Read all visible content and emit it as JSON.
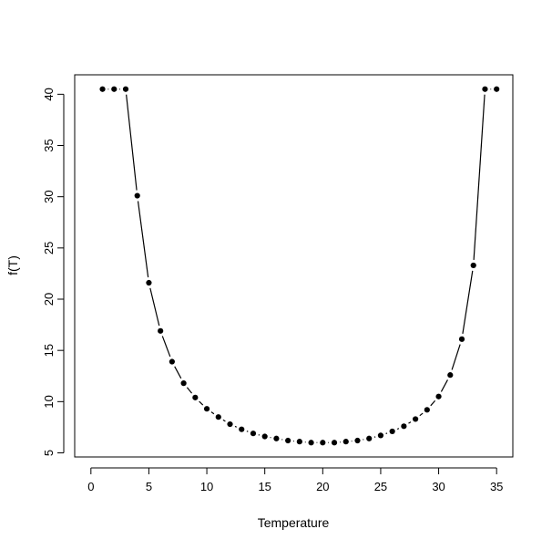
{
  "chart_data": {
    "type": "scatter",
    "title": "",
    "xlabel": "Temperature",
    "ylabel": "f(T)",
    "xlim": [
      -1.4,
      36.4
    ],
    "ylim": [
      4.6,
      41.9
    ],
    "xticks": [
      0,
      5,
      10,
      15,
      20,
      25,
      30,
      35
    ],
    "yticks": [
      5,
      10,
      15,
      20,
      25,
      30,
      35,
      40
    ],
    "grid": false,
    "legend": "none",
    "colors": {
      "points": "#000000",
      "line": "#000000",
      "axis": "#000000",
      "background": "#ffffff"
    },
    "series": [
      {
        "style": "points-and-line",
        "x": [
          1,
          2,
          3,
          4,
          5,
          6,
          7,
          8,
          9,
          10,
          11,
          12,
          13,
          14,
          15,
          16,
          17,
          18,
          19,
          20,
          21,
          22,
          23,
          24,
          25,
          26,
          27,
          28,
          29,
          30,
          31,
          32,
          33,
          34,
          35
        ],
        "y": [
          40.5,
          40.5,
          40.5,
          30.1,
          21.6,
          16.9,
          13.9,
          11.8,
          10.4,
          9.3,
          8.5,
          7.8,
          7.3,
          6.9,
          6.6,
          6.4,
          6.2,
          6.1,
          6.0,
          6.0,
          6.0,
          6.1,
          6.2,
          6.4,
          6.7,
          7.1,
          7.6,
          8.3,
          9.2,
          10.5,
          12.6,
          16.1,
          23.3,
          40.5,
          40.5
        ]
      }
    ]
  }
}
